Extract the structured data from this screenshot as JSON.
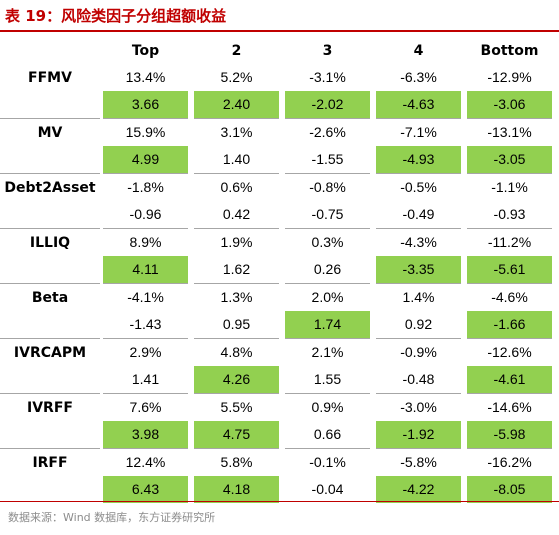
{
  "title": "表 19：风险类因子分组超额收益",
  "headers": [
    "Top",
    "2",
    "3",
    "4",
    "Bottom"
  ],
  "highlight_color": "#92D050",
  "rows": [
    {
      "factor": "FFMV",
      "pct": [
        "13.4%",
        "5.2%",
        "-3.1%",
        "-6.3%",
        "-12.9%"
      ],
      "tstat": [
        "3.66",
        "2.40",
        "-2.02",
        "-4.63",
        "-3.06"
      ],
      "highlight": [
        true,
        true,
        true,
        true,
        true
      ]
    },
    {
      "factor": "MV",
      "pct": [
        "15.9%",
        "3.1%",
        "-2.6%",
        "-7.1%",
        "-13.1%"
      ],
      "tstat": [
        "4.99",
        "1.40",
        "-1.55",
        "-4.93",
        "-3.05"
      ],
      "highlight": [
        true,
        false,
        false,
        true,
        true
      ]
    },
    {
      "factor": "Debt2Asset",
      "pct": [
        "-1.8%",
        "0.6%",
        "-0.8%",
        "-0.5%",
        "-1.1%"
      ],
      "tstat": [
        "-0.96",
        "0.42",
        "-0.75",
        "-0.49",
        "-0.93"
      ],
      "highlight": [
        false,
        false,
        false,
        false,
        false
      ]
    },
    {
      "factor": "ILLIQ",
      "pct": [
        "8.9%",
        "1.9%",
        "0.3%",
        "-4.3%",
        "-11.2%"
      ],
      "tstat": [
        "4.11",
        "1.62",
        "0.26",
        "-3.35",
        "-5.61"
      ],
      "highlight": [
        true,
        false,
        false,
        true,
        true
      ]
    },
    {
      "factor": "Beta",
      "pct": [
        "-4.1%",
        "1.3%",
        "2.0%",
        "1.4%",
        "-4.6%"
      ],
      "tstat": [
        "-1.43",
        "0.95",
        "1.74",
        "0.92",
        "-1.66"
      ],
      "highlight": [
        false,
        false,
        true,
        false,
        true
      ]
    },
    {
      "factor": "IVRCAPM",
      "pct": [
        "2.9%",
        "4.8%",
        "2.1%",
        "-0.9%",
        "-12.6%"
      ],
      "tstat": [
        "1.41",
        "4.26",
        "1.55",
        "-0.48",
        "-4.61"
      ],
      "highlight": [
        false,
        true,
        false,
        false,
        true
      ]
    },
    {
      "factor": "IVRFF",
      "pct": [
        "7.6%",
        "5.5%",
        "0.9%",
        "-3.0%",
        "-14.6%"
      ],
      "tstat": [
        "3.98",
        "4.75",
        "0.66",
        "-1.92",
        "-5.98"
      ],
      "highlight": [
        true,
        true,
        false,
        true,
        true
      ]
    },
    {
      "factor": "IRFF",
      "pct": [
        "12.4%",
        "5.8%",
        "-0.1%",
        "-5.8%",
        "-16.2%"
      ],
      "tstat": [
        "6.43",
        "4.18",
        "-0.04",
        "-4.22",
        "-8.05"
      ],
      "highlight": [
        true,
        true,
        false,
        true,
        true
      ]
    }
  ],
  "source": "数据来源：Wind 数据库，东方证券研究所"
}
